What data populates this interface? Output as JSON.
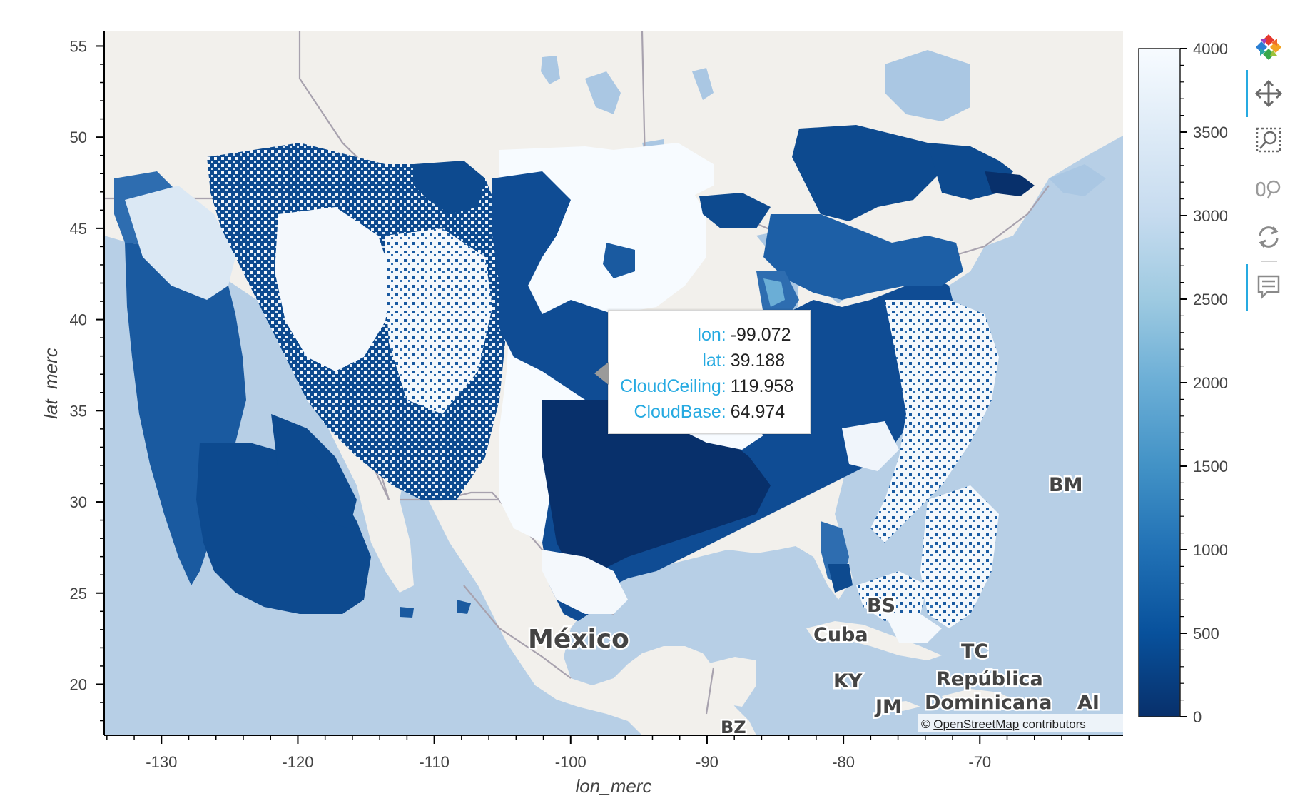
{
  "chart_data": {
    "type": "heatmap",
    "xlabel": "lon_merc",
    "ylabel": "lat_merc",
    "xlim": [
      -134.2,
      -59.5
    ],
    "ylim": [
      17.2,
      55.8
    ],
    "x_ticks": [
      -130,
      -120,
      -110,
      -100,
      -90,
      -80,
      -70
    ],
    "x_tick_labels": [
      "-130",
      "-120",
      "-110",
      "-100",
      "-90",
      "-80",
      "-70"
    ],
    "y_ticks": [
      20,
      25,
      30,
      35,
      40,
      45,
      50,
      55
    ],
    "y_tick_labels": [
      "20",
      "25",
      "30",
      "35",
      "40",
      "45",
      "50",
      "55"
    ],
    "colorbar": {
      "range": [
        0,
        4000
      ],
      "ticks": [
        0,
        500,
        1000,
        1500,
        2000,
        2500,
        3000,
        3500,
        4000
      ],
      "tick_labels": [
        "0",
        "500",
        "1000",
        "1500",
        "2000",
        "2500",
        "3000",
        "3500",
        "4000"
      ],
      "colors": [
        "#08306b",
        "#08519c",
        "#2171b5",
        "#4292c6",
        "#6baed6",
        "#9ecae1",
        "#c6dbef",
        "#deebf7",
        "#f7fbff"
      ]
    },
    "basemap_labels": [
      "México",
      "Cuba",
      "BS",
      "BM",
      "TC",
      "KY",
      "JM",
      "República",
      "Dominicana",
      "AI",
      "BZ"
    ],
    "attribution": {
      "prefix": "© ",
      "link": "OpenStreetMap",
      "suffix": " contributors"
    }
  },
  "tooltip": {
    "rows": [
      {
        "key": "lon:",
        "value": "-99.072"
      },
      {
        "key": "lat:",
        "value": "39.188"
      },
      {
        "key": "CloudCeiling:",
        "value": "119.958"
      },
      {
        "key": "CloudBase:",
        "value": "64.974"
      }
    ]
  },
  "toolbar": {
    "tools": [
      "bokeh-logo-icon",
      "pan-icon",
      "box-zoom-icon",
      "wheel-zoom-icon",
      "reset-icon",
      "hover-icon"
    ]
  },
  "colors": {
    "ocean": "#b7cfe6",
    "land": "#f2f0ec",
    "border": "#a8a2ae",
    "water": "#aac7e3",
    "accent": "#26aae1"
  }
}
